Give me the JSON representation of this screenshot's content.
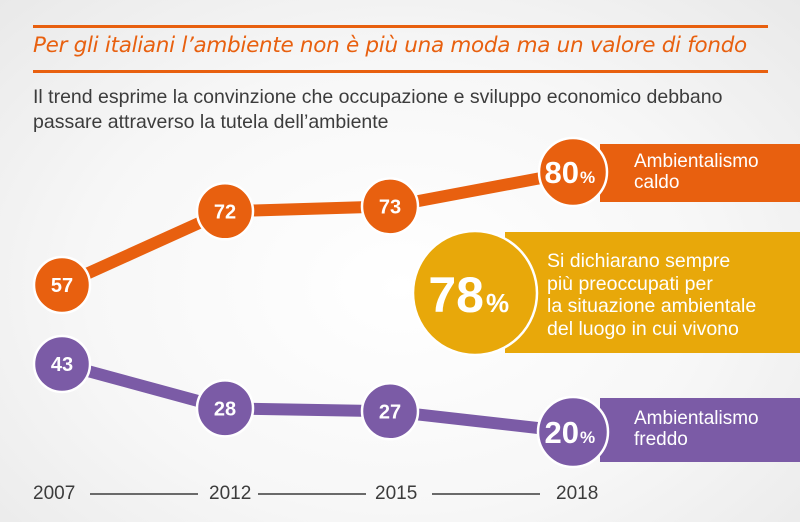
{
  "header": {
    "title": "Per gli italiani l’ambiente non è più una moda ma un valore di fondo",
    "subtitle": "Il trend esprime la convinzione che occupazione e sviluppo economico debbano passare attraverso la tutela dell’ambiente"
  },
  "colors": {
    "accent": "#e8600f",
    "caldo": "#e8600f",
    "freddo": "#7b5ba6",
    "highlight": "#e8a80a"
  },
  "chart_data": {
    "type": "line",
    "title": "Per gli italiani l’ambiente non è più una moda ma un valore di fondo",
    "subtitle": "Il trend esprime la convinzione che occupazione e sviluppo economico debbano passare attraverso la tutela dell’ambiente",
    "x": [
      "2007",
      "2012",
      "2015",
      "2018"
    ],
    "xlabel": "",
    "ylabel": "%",
    "grid": false,
    "series": [
      {
        "name": "Ambientalismo caldo",
        "values": [
          57,
          72,
          73,
          80
        ],
        "labels": [
          "57",
          "72",
          "73",
          "80"
        ],
        "final_label": "80",
        "color": "#e8600f"
      },
      {
        "name": "Ambientalismo freddo",
        "values": [
          43,
          28,
          27,
          20
        ],
        "labels": [
          "43",
          "28",
          "27",
          "20"
        ],
        "final_label": "20",
        "color": "#7b5ba6"
      }
    ],
    "annotations": [
      {
        "value": "78",
        "unit": "%",
        "text": "Si dichiarano sempre più preoccupati per la situazione ambientale del luogo in cui vivono"
      }
    ]
  },
  "legend": {
    "caldo": {
      "line1": "Ambientalismo",
      "line2": "caldo",
      "value": "80",
      "unit": "%"
    },
    "freddo": {
      "line1": "Ambientalismo",
      "line2": "freddo",
      "value": "20",
      "unit": "%"
    },
    "highlight": {
      "value": "78",
      "unit": "%",
      "lines": [
        "Si dichiarano sempre",
        "più preoccupati per",
        "la situazione ambientale",
        "del luogo in cui vivono"
      ]
    }
  },
  "axis": {
    "years": [
      "2007",
      "2012",
      "2015",
      "2018"
    ]
  }
}
